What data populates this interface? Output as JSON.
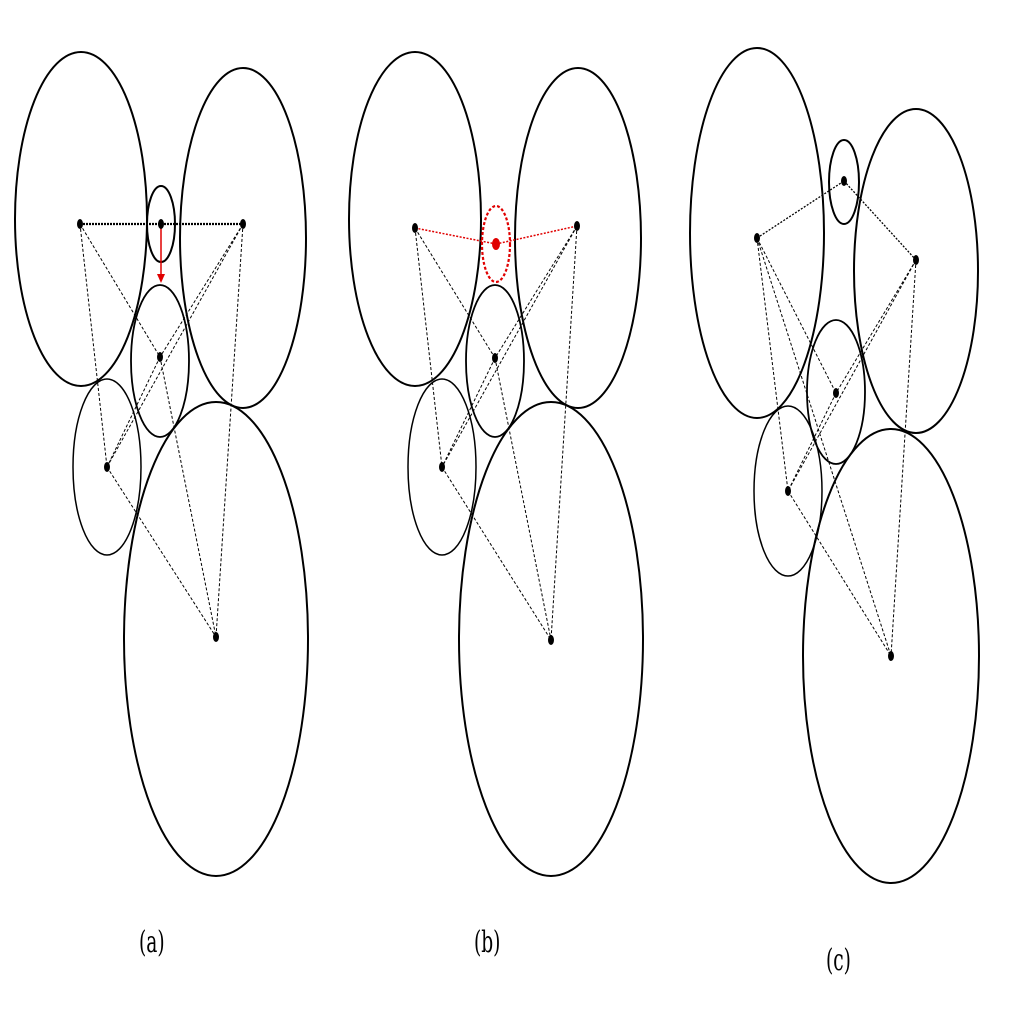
{
  "figure": {
    "panel_labels": {
      "a": "(a)",
      "b": "(b)",
      "c": "(c)"
    },
    "colors": {
      "ink": "#000000",
      "highlight": "#e00000"
    }
  }
}
